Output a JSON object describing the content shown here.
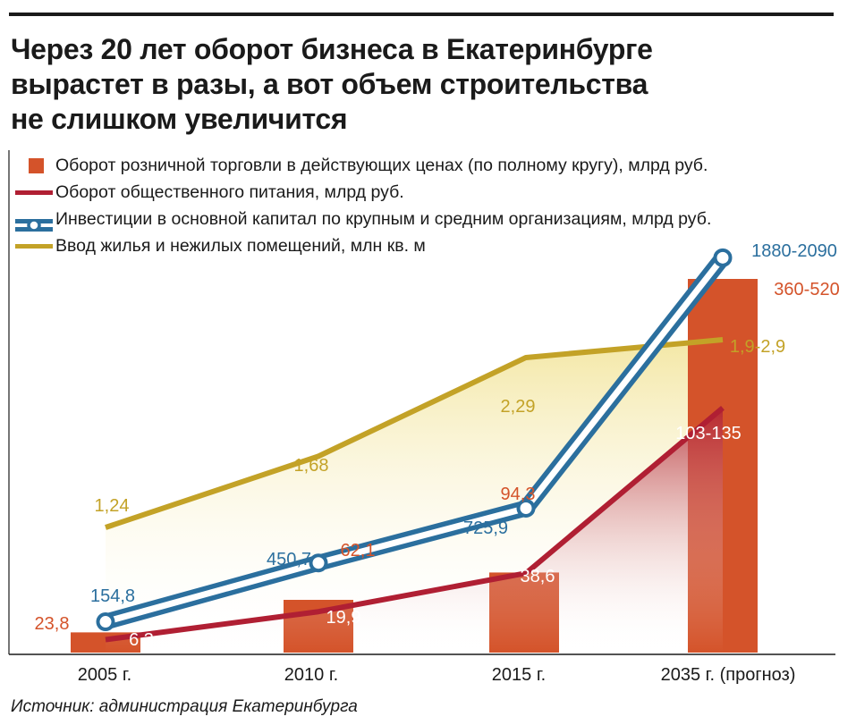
{
  "title": {
    "line1": "Через 20 лет оборот бизнеса в Екатеринбурге",
    "line2": "вырастет в разы, а вот объем строительства",
    "line3": "не слишком увеличится"
  },
  "colors": {
    "retail": "#d4532a",
    "catering": "#b01f33",
    "investment": "#2b6f9e",
    "housing": "#c3a227",
    "text": "#1a1a1a"
  },
  "chart_data": {
    "type": "bar",
    "categories": [
      "2005 г.",
      "2010 г.",
      "2015 г.",
      "2035 г. (прогноз)"
    ],
    "series": [
      {
        "key": "retail",
        "type": "bar",
        "name": "Оборот розничной торговли в действующих ценах (по полному кругу), млрд руб.",
        "values": [
          23.8,
          62.1,
          94.3,
          440
        ],
        "labels": [
          "23,8",
          "62,1",
          "94,3",
          "360-520"
        ]
      },
      {
        "key": "catering",
        "type": "line",
        "name": "Оборот общественного питания, млрд руб.",
        "values": [
          6.3,
          19.9,
          38.6,
          119
        ],
        "labels": [
          "6,3",
          "19,9",
          "38,6",
          "103-135"
        ]
      },
      {
        "key": "investment",
        "type": "line",
        "name": "Инвестиции в основной капитал по крупным и средним организациям, млрд руб.",
        "values": [
          154.8,
          450.7,
          725.9,
          1985
        ],
        "labels": [
          "154,8",
          "450,7",
          "725,9",
          "1880-2090"
        ]
      },
      {
        "key": "housing",
        "type": "line",
        "name": "Ввод жилья и нежилых помещений, млн кв. м",
        "values": [
          1.24,
          1.68,
          2.29,
          2.4
        ],
        "labels": [
          "1,24",
          "1,68",
          "2,29",
          "1,9-2,9"
        ]
      }
    ],
    "notes": "Each series is drawn on its own unlabeled scale; forecast values for 2035 are ranges (midpoints used)."
  },
  "source": "Источник: администрация Екатеринбурга"
}
